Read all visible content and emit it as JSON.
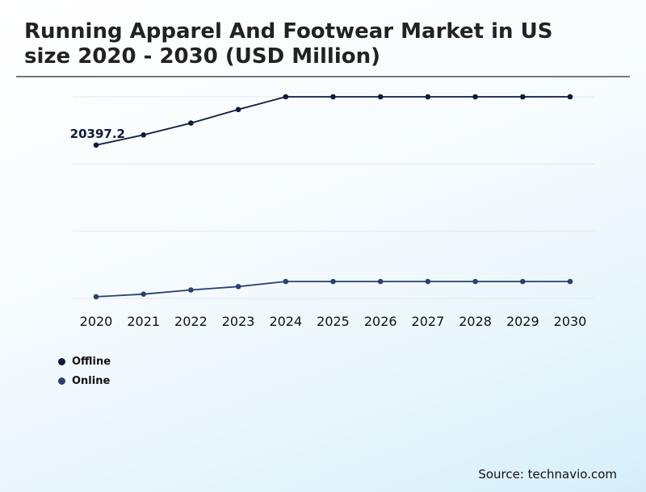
{
  "title": "Running Apparel And Footwear Market in US size 2020 - 2030 (USD Million)",
  "source": "Source: technavio.com",
  "colors": {
    "offline": "#0d1b3e",
    "online": "#2b3f73",
    "grid": "#e6e6e6"
  },
  "chart_data": {
    "type": "line",
    "title": "Running Apparel And Footwear Market in US size 2020 - 2030 (USD Million)",
    "xlabel": "",
    "ylabel": "",
    "categories": [
      "2020",
      "2021",
      "2022",
      "2023",
      "2024",
      "2025",
      "2026",
      "2027",
      "2028",
      "2029",
      "2030"
    ],
    "series": [
      {
        "name": "Offline",
        "values": [
          20397.2,
          21600,
          23000,
          24600,
          26100,
          26100,
          26100,
          26100,
          26100,
          26100,
          26100
        ],
        "annotation": "20397.2"
      },
      {
        "name": "Online",
        "values": [
          2500,
          2800,
          3300,
          3700,
          4300,
          4300,
          4300,
          4300,
          4300,
          4300,
          4300
        ]
      }
    ],
    "ylim": [
      2300,
      26100
    ],
    "grid": true,
    "legend": "bottom-left"
  }
}
